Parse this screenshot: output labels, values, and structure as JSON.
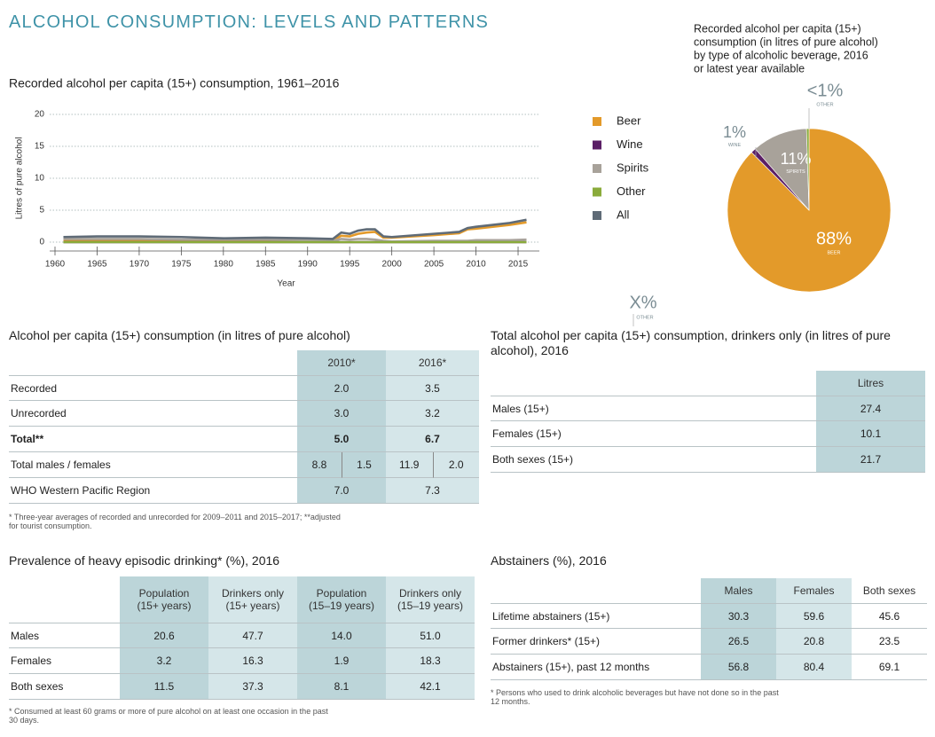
{
  "header": {
    "title": "ALCOHOL CONSUMPTION: LEVELS AND PATTERNS"
  },
  "chart_data": [
    {
      "type": "line",
      "title": "Recorded alcohol per capita (15+) consumption, 1961–2016",
      "y_label": "Litres of pure alcohol",
      "x_label": "Year",
      "x": [
        1961,
        1965,
        1970,
        1975,
        1980,
        1985,
        1990,
        1993,
        1994,
        1995,
        1996,
        1997,
        1998,
        1999,
        2000,
        2005,
        2008,
        2009,
        2010,
        2012,
        2014,
        2016
      ],
      "xlim": [
        1960,
        2017
      ],
      "xticks": [
        1960,
        1965,
        1970,
        1975,
        1980,
        1985,
        1990,
        1995,
        2000,
        2005,
        2010,
        2015
      ],
      "ylim": [
        0,
        20
      ],
      "yticks": [
        0,
        5,
        10,
        15,
        20
      ],
      "grid": true,
      "legend": "right",
      "series": [
        {
          "name": "Beer",
          "color": "#e39a2a",
          "values": [
            0.3,
            0.3,
            0.3,
            0.3,
            0.2,
            0.3,
            0.3,
            0.3,
            1.0,
            0.9,
            1.3,
            1.5,
            1.6,
            0.7,
            0.7,
            1.1,
            1.4,
            2.0,
            2.1,
            2.4,
            2.7,
            3.1
          ]
        },
        {
          "name": "Wine",
          "color": "#5b1f66",
          "values": [
            0,
            0,
            0,
            0,
            0,
            0,
            0,
            0,
            0,
            0,
            0,
            0,
            0,
            0,
            0,
            0,
            0,
            0,
            0,
            0,
            0,
            0
          ]
        },
        {
          "name": "Spirits",
          "color": "#a8a29a",
          "values": [
            0.5,
            0.5,
            0.5,
            0.4,
            0.4,
            0.4,
            0.3,
            0.2,
            0.5,
            0.4,
            0.5,
            0.5,
            0.4,
            0.2,
            0.1,
            0.2,
            0.2,
            0.2,
            0.3,
            0.3,
            0.3,
            0.4
          ]
        },
        {
          "name": "Other",
          "color": "#8aab3b",
          "values": [
            0,
            0,
            0,
            0,
            0,
            0,
            0,
            0,
            0,
            0,
            0,
            0,
            0,
            0,
            0,
            0,
            0,
            0,
            0,
            0,
            0,
            0
          ]
        },
        {
          "name": "All",
          "color": "#5f6b77",
          "values": [
            0.8,
            0.9,
            0.9,
            0.8,
            0.6,
            0.7,
            0.6,
            0.5,
            1.5,
            1.3,
            1.8,
            2.0,
            2.0,
            0.9,
            0.8,
            1.3,
            1.6,
            2.2,
            2.4,
            2.7,
            3.0,
            3.5
          ]
        }
      ]
    },
    {
      "type": "pie",
      "title": [
        "Recorded alcohol per capita (15+)",
        "consumption (in litres of pure alcohol)",
        "by type of alcoholic beverage, 2016",
        "or latest year available"
      ],
      "categories": [
        "BEER",
        "WINE",
        "SPIRITS",
        "OTHER"
      ],
      "values": [
        88,
        1,
        11,
        0.5
      ],
      "value_labels": [
        "88%",
        "1%",
        "11%",
        "<1%"
      ],
      "colors": [
        "#e39a2a",
        "#5b1f66",
        "#a8a29a",
        "#8aab3b"
      ],
      "stray_label": {
        "value": "X%",
        "caption": "OTHER"
      }
    }
  ],
  "tables": [
    {
      "title": [
        "Alcohol per capita (15+) consumption (in litres of pure alcohol)"
      ],
      "header": [
        "2010*",
        "2016*"
      ],
      "rows": [
        {
          "label": "Recorded",
          "cells": [
            "2.0",
            "3.5"
          ]
        },
        {
          "label": "Unrecorded",
          "cells": [
            "3.0",
            "3.2"
          ]
        },
        {
          "label": "Total**",
          "cells": [
            "5.0",
            "6.7"
          ]
        },
        {
          "label": "Total males / females",
          "cells": [
            "8.8",
            "1.5",
            "11.9",
            "2.0"
          ]
        },
        {
          "label": "WHO Western Pacific Region",
          "cells": [
            "7.0",
            "7.3"
          ]
        }
      ],
      "footnote": [
        "* Three-year averages of recorded and unrecorded for 2009–2011 and 2015–2017; **adjusted",
        "for tourist consumption."
      ]
    },
    {
      "title": [
        "Total alcohol per capita (15+) consumption, drinkers only (in litres of pure",
        "alcohol), 2016"
      ],
      "header": [
        "Litres"
      ],
      "rows": [
        {
          "label": "Males (15+)",
          "cells": [
            "27.4"
          ]
        },
        {
          "label": "Females (15+)",
          "cells": [
            "10.1"
          ]
        },
        {
          "label": "Both sexes (15+)",
          "cells": [
            "21.7"
          ]
        }
      ]
    },
    {
      "title": [
        "Prevalence of heavy episodic drinking* (%), 2016"
      ],
      "header": [
        [
          "Population",
          "(15+ years)"
        ],
        [
          "Drinkers only",
          "(15+ years)"
        ],
        [
          "Population",
          "(15–19 years)"
        ],
        [
          "Drinkers only",
          "(15–19 years)"
        ]
      ],
      "rows": [
        {
          "label": "Males",
          "cells": [
            "20.6",
            "47.7",
            "14.0",
            "51.0"
          ]
        },
        {
          "label": "Females",
          "cells": [
            "3.2",
            "16.3",
            "1.9",
            "18.3"
          ]
        },
        {
          "label": "Both sexes",
          "cells": [
            "11.5",
            "37.3",
            "8.1",
            "42.1"
          ]
        }
      ],
      "footnote": [
        "* Consumed at least 60 grams or more of pure alcohol on at least one occasion in the past",
        "30 days."
      ]
    },
    {
      "title": [
        "Abstainers (%), 2016"
      ],
      "header": [
        "Males",
        "Females",
        "Both sexes"
      ],
      "rows": [
        {
          "label": "Lifetime abstainers (15+)",
          "cells": [
            "30.3",
            "59.6",
            "45.6"
          ]
        },
        {
          "label": "Former drinkers* (15+)",
          "cells": [
            "26.5",
            "20.8",
            "23.5"
          ]
        },
        {
          "label": "Abstainers (15+), past 12 months",
          "cells": [
            "56.8",
            "80.4",
            "69.1"
          ]
        }
      ],
      "footnote": [
        "* Persons who used to drink alcoholic beverages but have not done so in the past",
        "12 months."
      ]
    }
  ]
}
